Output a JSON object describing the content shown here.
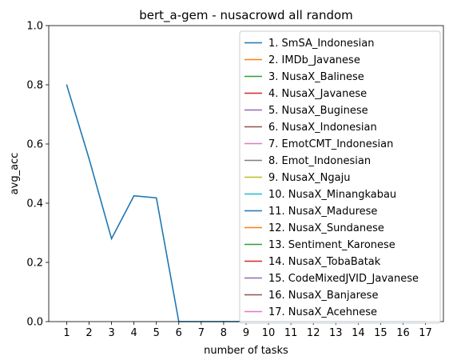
{
  "chart_data": {
    "type": "line",
    "title": "bert_a-gem - nusacrowd all random",
    "xlabel": "number of tasks",
    "ylabel": "avg_acc",
    "xlim": [
      0.2,
      17.8
    ],
    "ylim": [
      0,
      1.0
    ],
    "x_ticks": [
      1,
      2,
      3,
      4,
      5,
      6,
      7,
      8,
      9,
      10,
      11,
      12,
      13,
      14,
      15,
      16,
      17
    ],
    "y_ticks": [
      "0.0",
      "0.2",
      "0.4",
      "0.6",
      "0.8",
      "1.0"
    ],
    "grid": false,
    "legend_position": "upper right",
    "series": [
      {
        "name": "1. SmSA_Indonesian",
        "color": "#1f77b4",
        "x": [
          1,
          2,
          3,
          4,
          5,
          6,
          7,
          8,
          9,
          10,
          11,
          12,
          13,
          14,
          15,
          16,
          17
        ],
        "values": [
          0.8,
          0.55,
          0.28,
          0.425,
          0.418,
          0,
          0,
          0,
          0,
          0,
          0,
          0,
          0,
          0,
          0,
          0,
          0
        ]
      },
      {
        "name": "2. IMDb_Javanese",
        "color": "#ff7f0e",
        "x": [],
        "values": []
      },
      {
        "name": "3. NusaX_Balinese",
        "color": "#2ca02c",
        "x": [],
        "values": []
      },
      {
        "name": "4. NusaX_Javanese",
        "color": "#d62728",
        "x": [],
        "values": []
      },
      {
        "name": "5. NusaX_Buginese",
        "color": "#9467bd",
        "x": [],
        "values": []
      },
      {
        "name": "6. NusaX_Indonesian",
        "color": "#8c564b",
        "x": [],
        "values": []
      },
      {
        "name": "7. EmotCMT_Indonesian",
        "color": "#e377c2",
        "x": [],
        "values": []
      },
      {
        "name": "8. Emot_Indonesian",
        "color": "#7f7f7f",
        "x": [],
        "values": []
      },
      {
        "name": "9. NusaX_Ngaju",
        "color": "#bcbd22",
        "x": [],
        "values": []
      },
      {
        "name": "10. NusaX_Minangkabau",
        "color": "#17becf",
        "x": [],
        "values": []
      },
      {
        "name": "11. NusaX_Madurese",
        "color": "#1f77b4",
        "x": [],
        "values": []
      },
      {
        "name": "12. NusaX_Sundanese",
        "color": "#ff7f0e",
        "x": [],
        "values": []
      },
      {
        "name": "13. Sentiment_Karonese",
        "color": "#2ca02c",
        "x": [],
        "values": []
      },
      {
        "name": "14. NusaX_TobaBatak",
        "color": "#d62728",
        "x": [],
        "values": []
      },
      {
        "name": "15. CodeMixedJVID_Javanese",
        "color": "#9467bd",
        "x": [],
        "values": []
      },
      {
        "name": "16. NusaX_Banjarese",
        "color": "#8c564b",
        "x": [],
        "values": []
      },
      {
        "name": "17. NusaX_Acehnese",
        "color": "#e377c2",
        "x": [],
        "values": []
      }
    ]
  }
}
